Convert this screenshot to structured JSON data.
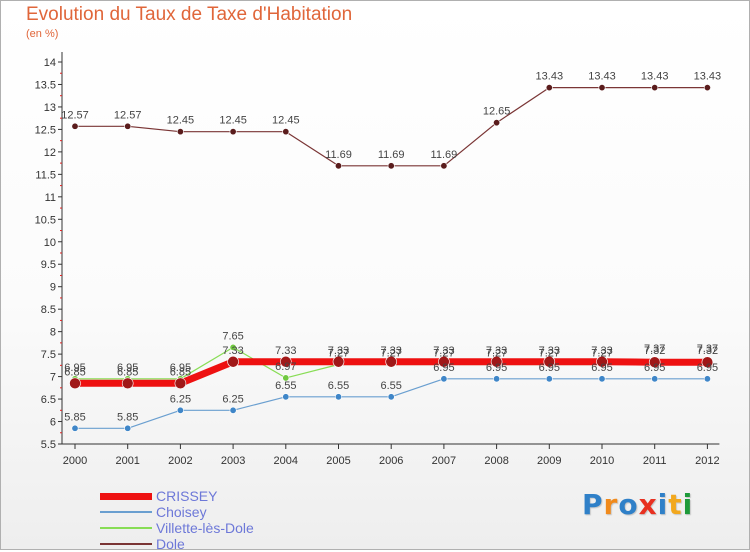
{
  "title": "Evolution du Taux de Taxe d'Habitation",
  "subtitle": "(en %)",
  "logo": {
    "text": "Proxiti",
    "letter_colors": [
      "#2f80c8",
      "#f08a1c",
      "#2f80c8",
      "#e83020",
      "#2f80c8",
      "#f2a81e",
      "#1e9a3a"
    ]
  },
  "chart_data": {
    "type": "line",
    "title": "Evolution du Taux de Taxe d'Habitation",
    "subtitle": "(en %)",
    "categories": [
      "2000",
      "2001",
      "2002",
      "2003",
      "2004",
      "2005",
      "2006",
      "2007",
      "2008",
      "2009",
      "2010",
      "2011",
      "2012"
    ],
    "ylim": [
      5.5,
      14
    ],
    "yticks": [
      "5.5",
      "6",
      "6.5",
      "7",
      "7.5",
      "8",
      "8.5",
      "9",
      "9.5",
      "10",
      "10.5",
      "11",
      "11.5",
      "12",
      "12.5",
      "13",
      "13.5",
      "14"
    ],
    "grid": false,
    "legend_position": "bottom-left",
    "series": [
      {
        "name": "CRISSEY",
        "color": "#ee1111",
        "values": [
          6.85,
          6.85,
          6.85,
          7.33,
          7.33,
          7.33,
          7.33,
          7.33,
          7.33,
          7.33,
          7.33,
          7.32,
          7.32
        ],
        "labels": [
          "6.85",
          "6.85",
          "6.85",
          "7.33",
          "7.33",
          "7.33",
          "7.33",
          "7.33",
          "7.33",
          "7.33",
          "7.33",
          "7.32",
          "7.32"
        ]
      },
      {
        "name": "Choisey",
        "color": "#6a9fd0",
        "values": [
          5.85,
          5.85,
          6.25,
          6.25,
          6.55,
          6.55,
          6.55,
          6.95,
          6.95,
          6.95,
          6.95,
          6.95,
          6.95
        ],
        "labels": [
          "5.85",
          "5.85",
          "6.25",
          "6.25",
          "6.55",
          "6.55",
          "6.55",
          "6.95",
          "6.95",
          "6.95",
          "6.95",
          "6.95",
          "6.95"
        ]
      },
      {
        "name": "Villette-lès-Dole",
        "color": "#88dd55",
        "values": [
          6.95,
          6.95,
          6.95,
          7.65,
          6.97,
          7.27,
          7.27,
          7.27,
          7.27,
          7.27,
          7.27,
          7.37,
          7.37
        ],
        "labels": [
          "6.95",
          "6.95",
          "6.95",
          "7.65",
          "6.97",
          "7.27",
          "7.27",
          "7.27",
          "7.27",
          "7.27",
          "7.27",
          "7.37",
          "7.37"
        ]
      },
      {
        "name": "Dole",
        "color": "#7a3535",
        "values": [
          12.57,
          12.57,
          12.45,
          12.45,
          12.45,
          11.69,
          11.69,
          11.69,
          12.65,
          13.43,
          13.43,
          13.43,
          13.43
        ],
        "labels": [
          "12.57",
          "12.57",
          "12.45",
          "12.45",
          "12.45",
          "11.69",
          "11.69",
          "11.69",
          "12.65",
          "13.43",
          "13.43",
          "13.43",
          "13.43"
        ]
      }
    ]
  }
}
